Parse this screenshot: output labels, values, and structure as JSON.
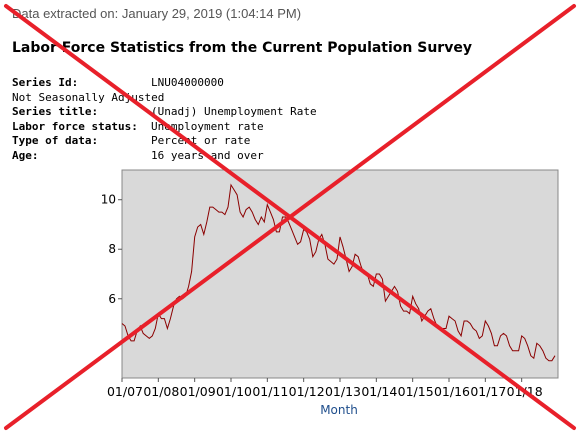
{
  "header": {
    "extracted_on": "Data extracted on: January 29, 2019 (1:04:14 PM)",
    "title": "Labor Force Statistics from the Current Population Survey"
  },
  "series_info": {
    "series_id_label": "Series Id:",
    "series_id": "LNU04000000",
    "seasonal_label": "Not Seasonally Adjusted",
    "series_title_label": "Series title:",
    "series_title": "(Unadj) Unemployment Rate",
    "status_label": "Labor force status:",
    "status": "Unemployment rate",
    "data_type_label": "Type of data:",
    "data_type": "Percent or rate",
    "age_label": "Age:",
    "age": "16 years and over"
  },
  "chart_data": {
    "type": "line",
    "xlabel": "Month",
    "ylabel": "",
    "title": "",
    "xlim": [
      2007.0,
      2019.0
    ],
    "ylim": [
      2.8,
      11.2
    ],
    "yticks": [
      10,
      8,
      6
    ],
    "ytick_labels": [
      "10",
      "8",
      "6"
    ],
    "xticks": [
      2007,
      2008,
      2009,
      2010,
      2011,
      2012,
      2013,
      2014,
      2015,
      2016,
      2017,
      2018
    ],
    "xtick_labels": [
      "01/07",
      "01/08",
      "01/09",
      "01/10",
      "01/11",
      "01/12",
      "01/13",
      "01/14",
      "01/15",
      "01/16",
      "01/17",
      "01/18"
    ],
    "grid": false,
    "line_color": "#8b0000",
    "plot_background": "#d9d9d9",
    "series": [
      {
        "start": "2007-01",
        "frequency": "monthly",
        "values": [
          5.0,
          4.9,
          4.5,
          4.3,
          4.3,
          4.7,
          4.9,
          4.6,
          4.5,
          4.4,
          4.5,
          4.8,
          5.4,
          5.2,
          5.2,
          4.8,
          5.2,
          5.7,
          6.0,
          6.1,
          6.0,
          6.1,
          6.5,
          7.1,
          8.5,
          8.9,
          9.0,
          8.6,
          9.1,
          9.7,
          9.7,
          9.6,
          9.5,
          9.5,
          9.4,
          9.7,
          10.6,
          10.4,
          10.2,
          9.5,
          9.3,
          9.6,
          9.7,
          9.5,
          9.2,
          9.0,
          9.3,
          9.1,
          9.8,
          9.5,
          9.2,
          8.7,
          8.7,
          9.3,
          9.3,
          9.1,
          8.8,
          8.5,
          8.2,
          8.3,
          8.8,
          8.7,
          8.4,
          7.7,
          7.9,
          8.4,
          8.6,
          8.2,
          7.6,
          7.5,
          7.4,
          7.6,
          8.5,
          8.1,
          7.6,
          7.1,
          7.3,
          7.8,
          7.7,
          7.3,
          7.0,
          7.0,
          6.6,
          6.5,
          7.0,
          7.0,
          6.8,
          5.9,
          6.1,
          6.3,
          6.5,
          6.3,
          5.7,
          5.5,
          5.5,
          5.4,
          6.1,
          5.8,
          5.6,
          5.1,
          5.3,
          5.5,
          5.6,
          5.2,
          4.9,
          4.8,
          4.8,
          4.8,
          5.3,
          5.2,
          5.1,
          4.7,
          4.5,
          5.1,
          5.1,
          5.0,
          4.8,
          4.7,
          4.4,
          4.5,
          5.1,
          4.9,
          4.6,
          4.1,
          4.1,
          4.5,
          4.6,
          4.5,
          4.1,
          3.9,
          3.9,
          3.9,
          4.5,
          4.4,
          4.1,
          3.7,
          3.6,
          4.2,
          4.1,
          3.9,
          3.6,
          3.5,
          3.5,
          3.7
        ]
      }
    ]
  },
  "overlay": {
    "cross_color": "#e8202a"
  }
}
